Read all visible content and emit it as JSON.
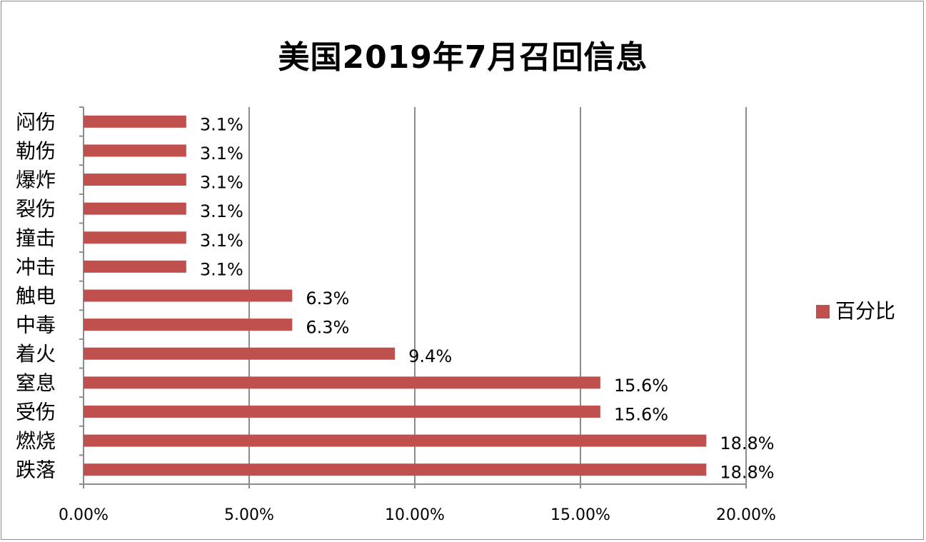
{
  "chart_data": {
    "type": "bar",
    "orientation": "horizontal",
    "title": "美国2019年7月召回信息",
    "xlabel": "",
    "ylabel": "",
    "categories": [
      "跌落",
      "燃烧",
      "受伤",
      "窒息",
      "着火",
      "中毒",
      "触电",
      "冲击",
      "撞击",
      "裂伤",
      "爆炸",
      "勒伤",
      "闷伤"
    ],
    "series": [
      {
        "name": "百分比",
        "values": [
          18.8,
          18.8,
          15.6,
          15.6,
          9.4,
          6.3,
          6.3,
          3.1,
          3.1,
          3.1,
          3.1,
          3.1,
          3.1
        ],
        "data_labels": [
          "18.8%",
          "18.8%",
          "15.6%",
          "15.6%",
          "9.4%",
          "6.3%",
          "6.3%",
          "3.1%",
          "3.1%",
          "3.1%",
          "3.1%",
          "3.1%",
          "3.1%"
        ],
        "color": "#c0504d"
      }
    ],
    "xlim": [
      0,
      20
    ],
    "x_ticks": [
      0,
      5,
      10,
      15,
      20
    ],
    "x_tick_labels": [
      "0.00%",
      "5.00%",
      "10.00%",
      "15.00%",
      "20.00%"
    ],
    "grid": "vertical",
    "legend": "right"
  }
}
